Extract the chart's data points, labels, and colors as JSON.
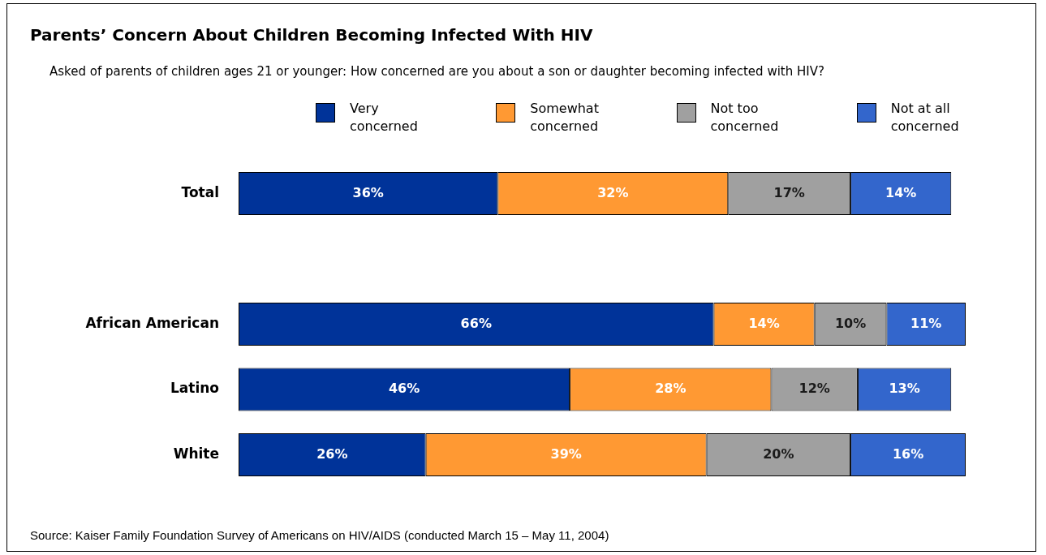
{
  "chart_data": {
    "type": "bar",
    "orientation": "horizontal",
    "stacked": true,
    "title": "Parents’ Concern About Children Becoming Infected With HIV",
    "subtitle": "Asked of parents of children ages 21 or younger: How concerned are you about a son or daughter becoming infected with HIV?",
    "categories": [
      "Total",
      null,
      "African American",
      "Latino",
      "White"
    ],
    "legend": "top",
    "series": [
      {
        "name": "Very concerned",
        "color": "#003399",
        "values": [
          36,
          null,
          66,
          46,
          26
        ],
        "value_labels": [
          "36%",
          null,
          "66%",
          "46%",
          "26%"
        ]
      },
      {
        "name": "Somewhat concerned",
        "color": "#ff9933",
        "values": [
          32,
          null,
          14,
          28,
          39
        ],
        "value_labels": [
          "32%",
          null,
          "14%",
          "28%",
          "39%"
        ]
      },
      {
        "name": "Not too concerned",
        "color": "#a0a0a0",
        "values": [
          17,
          null,
          10,
          12,
          20
        ],
        "value_labels": [
          "17%",
          null,
          "10%",
          "12%",
          "20%"
        ]
      },
      {
        "name": "Not at all concerned",
        "color": "#3366cc",
        "values": [
          14,
          null,
          11,
          13,
          16
        ],
        "value_labels": [
          "14%",
          null,
          "11%",
          "13%",
          "16%"
        ]
      }
    ],
    "annotations": [
      "Source: Kaiser Family Foundation Survey of Americans on HIV/AIDS  (conducted March 15 – May 11, 2004)"
    ]
  }
}
